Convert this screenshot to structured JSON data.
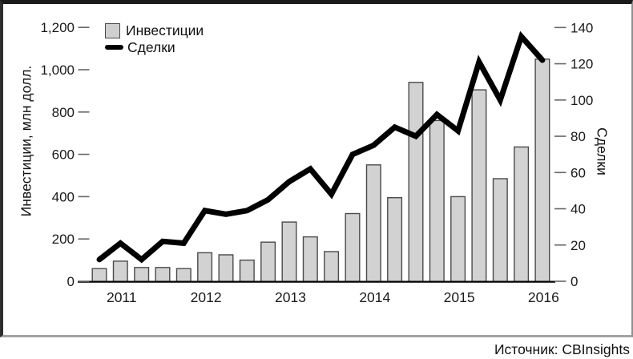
{
  "legend": {
    "investments_label": "Инвестиции",
    "deals_label": "Сделки"
  },
  "source": {
    "label": "Источник: CBInsights"
  },
  "chart_data": {
    "type": "combo-bar-line",
    "x": [
      "2011 Q1",
      "2011 Q2",
      "2011 Q3",
      "2011 Q4",
      "2012 Q1",
      "2012 Q2",
      "2012 Q3",
      "2012 Q4",
      "2013 Q1",
      "2013 Q2",
      "2013 Q3",
      "2013 Q4",
      "2014 Q1",
      "2014 Q2",
      "2014 Q3",
      "2014 Q4",
      "2015 Q1",
      "2015 Q2",
      "2015 Q3",
      "2015 Q4",
      "2016 Q1",
      "2016 Q2"
    ],
    "year_labels": [
      "2011",
      "2012",
      "2013",
      "2014",
      "2015",
      "2016"
    ],
    "series": [
      {
        "name": "Инвестиции",
        "type": "bar",
        "axis": "left",
        "values": [
          60,
          95,
          65,
          65,
          60,
          135,
          125,
          100,
          185,
          280,
          210,
          140,
          320,
          550,
          395,
          940,
          760,
          400,
          905,
          485,
          635,
          1050
        ]
      },
      {
        "name": "Сделки",
        "type": "line",
        "axis": "right",
        "values": [
          12,
          21,
          12,
          22,
          21,
          39,
          37,
          39,
          45,
          55,
          62,
          48,
          70,
          75,
          85,
          80,
          92,
          83,
          121,
          100,
          135,
          122
        ]
      }
    ],
    "left_axis": {
      "title": "Инвестиции, млн долл.",
      "range": [
        0,
        1200
      ],
      "tick_values": [
        0,
        200,
        400,
        600,
        800,
        1000,
        1200
      ],
      "tick_labels": [
        "0",
        "200",
        "400",
        "600",
        "800",
        "1,000",
        "1,200"
      ]
    },
    "right_axis": {
      "title": "Сделки",
      "range": [
        0,
        140
      ],
      "tick_values": [
        0,
        20,
        40,
        60,
        80,
        100,
        120,
        140
      ],
      "tick_labels": [
        "0",
        "20",
        "40",
        "60",
        "80",
        "100",
        "120",
        "140"
      ]
    },
    "colors": {
      "bar_fill": "#d2d2d2",
      "bar_stroke": "#4a4a4a",
      "line": "#000000",
      "axis": "#000000",
      "tick": "#666666"
    },
    "grid": false,
    "legend_position": "top-left"
  }
}
